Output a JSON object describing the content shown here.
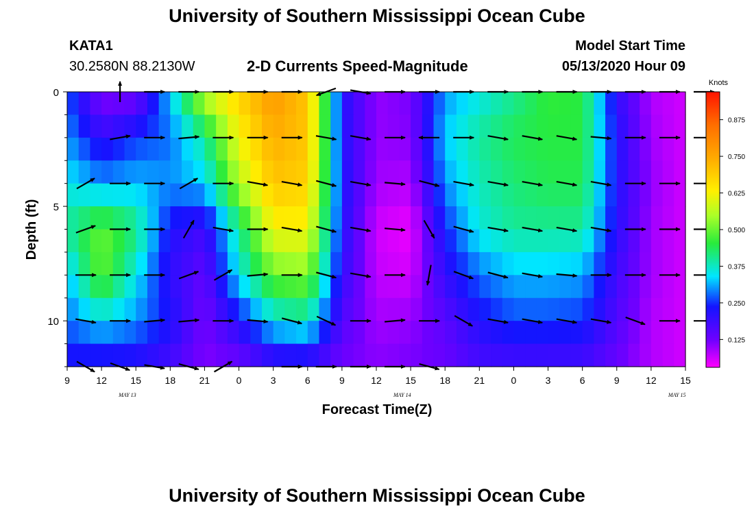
{
  "header": {
    "title": "University of Southern Mississippi Ocean Cube",
    "station": "KATA1",
    "coords": "30.2580N 88.2130W",
    "subtitle": "2-D Currents Speed-Magnitude",
    "model_start_label": "Model Start Time",
    "model_start_value": "05/13/2020 Hour 09"
  },
  "footer": {
    "title": "University of Southern Mississippi Ocean Cube"
  },
  "chart_data": {
    "type": "heatmap",
    "title": "2-D Currents Speed-Magnitude",
    "xlabel": "Forecast Time(Z)",
    "ylabel": "Depth (ft)",
    "x_tick_labels": [
      "9",
      "12",
      "15",
      "18",
      "21",
      "0",
      "3",
      "6",
      "9",
      "12",
      "15",
      "18",
      "21",
      "0",
      "3",
      "6",
      "9",
      "12",
      "15"
    ],
    "date_labels": [
      {
        "label": "MAY 13",
        "at_tick": 3.75
      },
      {
        "label": "MAY 14",
        "at_tick": 11.75
      },
      {
        "label": "MAY 15",
        "at_tick": 19.75
      }
    ],
    "x_range_hours": [
      0,
      54
    ],
    "y_tick_labels": [
      0,
      5,
      10
    ],
    "ylim": [
      0,
      12
    ],
    "y_inverted": true,
    "colorbar": {
      "unit": "Knots",
      "tick_labels": [
        "0.875",
        "0.750",
        "0.625",
        "0.500",
        "0.375",
        "0.250",
        "0.125"
      ],
      "tick_values": [
        0.875,
        0.75,
        0.625,
        0.5,
        0.375,
        0.25,
        0.125
      ],
      "range": [
        0.03,
        0.97
      ]
    },
    "speed_grid": {
      "time_hours": [
        0,
        3,
        6,
        9,
        12,
        15,
        18,
        21,
        24,
        27,
        30,
        33,
        36,
        39,
        42,
        45,
        48,
        51,
        54
      ],
      "depth_ft": [
        0,
        2,
        4,
        6,
        8,
        10,
        12
      ],
      "rows": [
        [
          0.27,
          0.1,
          0.11,
          0.33,
          0.58,
          0.68,
          0.78,
          0.7,
          0.22,
          0.1,
          0.12,
          0.3,
          0.35,
          0.4,
          0.46,
          0.45,
          0.2,
          0.08,
          0.06
        ],
        [
          0.3,
          0.2,
          0.25,
          0.28,
          0.4,
          0.62,
          0.74,
          0.7,
          0.22,
          0.1,
          0.11,
          0.33,
          0.4,
          0.44,
          0.45,
          0.45,
          0.22,
          0.09,
          0.06
        ],
        [
          0.35,
          0.3,
          0.32,
          0.3,
          0.33,
          0.55,
          0.7,
          0.68,
          0.23,
          0.09,
          0.08,
          0.3,
          0.38,
          0.42,
          0.44,
          0.44,
          0.22,
          0.1,
          0.06
        ],
        [
          0.4,
          0.5,
          0.42,
          0.22,
          0.18,
          0.4,
          0.62,
          0.62,
          0.22,
          0.06,
          0.04,
          0.24,
          0.36,
          0.4,
          0.4,
          0.4,
          0.21,
          0.09,
          0.06
        ],
        [
          0.32,
          0.5,
          0.35,
          0.2,
          0.14,
          0.35,
          0.5,
          0.52,
          0.2,
          0.07,
          0.06,
          0.2,
          0.28,
          0.32,
          0.32,
          0.31,
          0.18,
          0.09,
          0.06
        ],
        [
          0.28,
          0.34,
          0.3,
          0.23,
          0.12,
          0.22,
          0.35,
          0.38,
          0.16,
          0.09,
          0.1,
          0.15,
          0.22,
          0.26,
          0.26,
          0.25,
          0.16,
          0.08,
          0.06
        ],
        [
          0.22,
          0.2,
          0.2,
          0.17,
          0.11,
          0.12,
          0.17,
          0.17,
          0.12,
          0.11,
          0.12,
          0.13,
          0.17,
          0.17,
          0.17,
          0.17,
          0.13,
          0.08,
          0.06
        ]
      ]
    },
    "vectors": {
      "columns_hours": [
        0,
        3,
        6,
        9,
        12,
        15,
        18,
        21,
        24,
        27,
        30,
        33,
        36,
        39,
        42,
        45,
        48,
        51,
        54
      ],
      "depths_ft": [
        0,
        2,
        4,
        6,
        8,
        10,
        12
      ],
      "angles_deg": [
        [
          null,
          270,
          0,
          0,
          0,
          0,
          0,
          160,
          10,
          0,
          0,
          0,
          0,
          0,
          0,
          0,
          0,
          0,
          0
        ],
        [
          null,
          350,
          0,
          355,
          0,
          0,
          0,
          10,
          10,
          0,
          180,
          0,
          10,
          10,
          10,
          5,
          0,
          0,
          0
        ],
        [
          330,
          0,
          0,
          330,
          0,
          10,
          10,
          15,
          10,
          5,
          15,
          10,
          10,
          10,
          10,
          10,
          0,
          0,
          0
        ],
        [
          340,
          0,
          0,
          300,
          10,
          0,
          10,
          15,
          10,
          5,
          60,
          15,
          10,
          10,
          10,
          10,
          0,
          0,
          0
        ],
        [
          0,
          0,
          0,
          340,
          330,
          355,
          0,
          15,
          10,
          0,
          100,
          20,
          15,
          10,
          5,
          0,
          0,
          0,
          0
        ],
        [
          10,
          0,
          355,
          355,
          0,
          5,
          15,
          25,
          0,
          355,
          0,
          30,
          10,
          10,
          10,
          10,
          20,
          0,
          0
        ],
        [
          30,
          20,
          10,
          15,
          330,
          null,
          0,
          0,
          0,
          0,
          15,
          null,
          null,
          null,
          null,
          null,
          null,
          null,
          null
        ]
      ]
    }
  }
}
